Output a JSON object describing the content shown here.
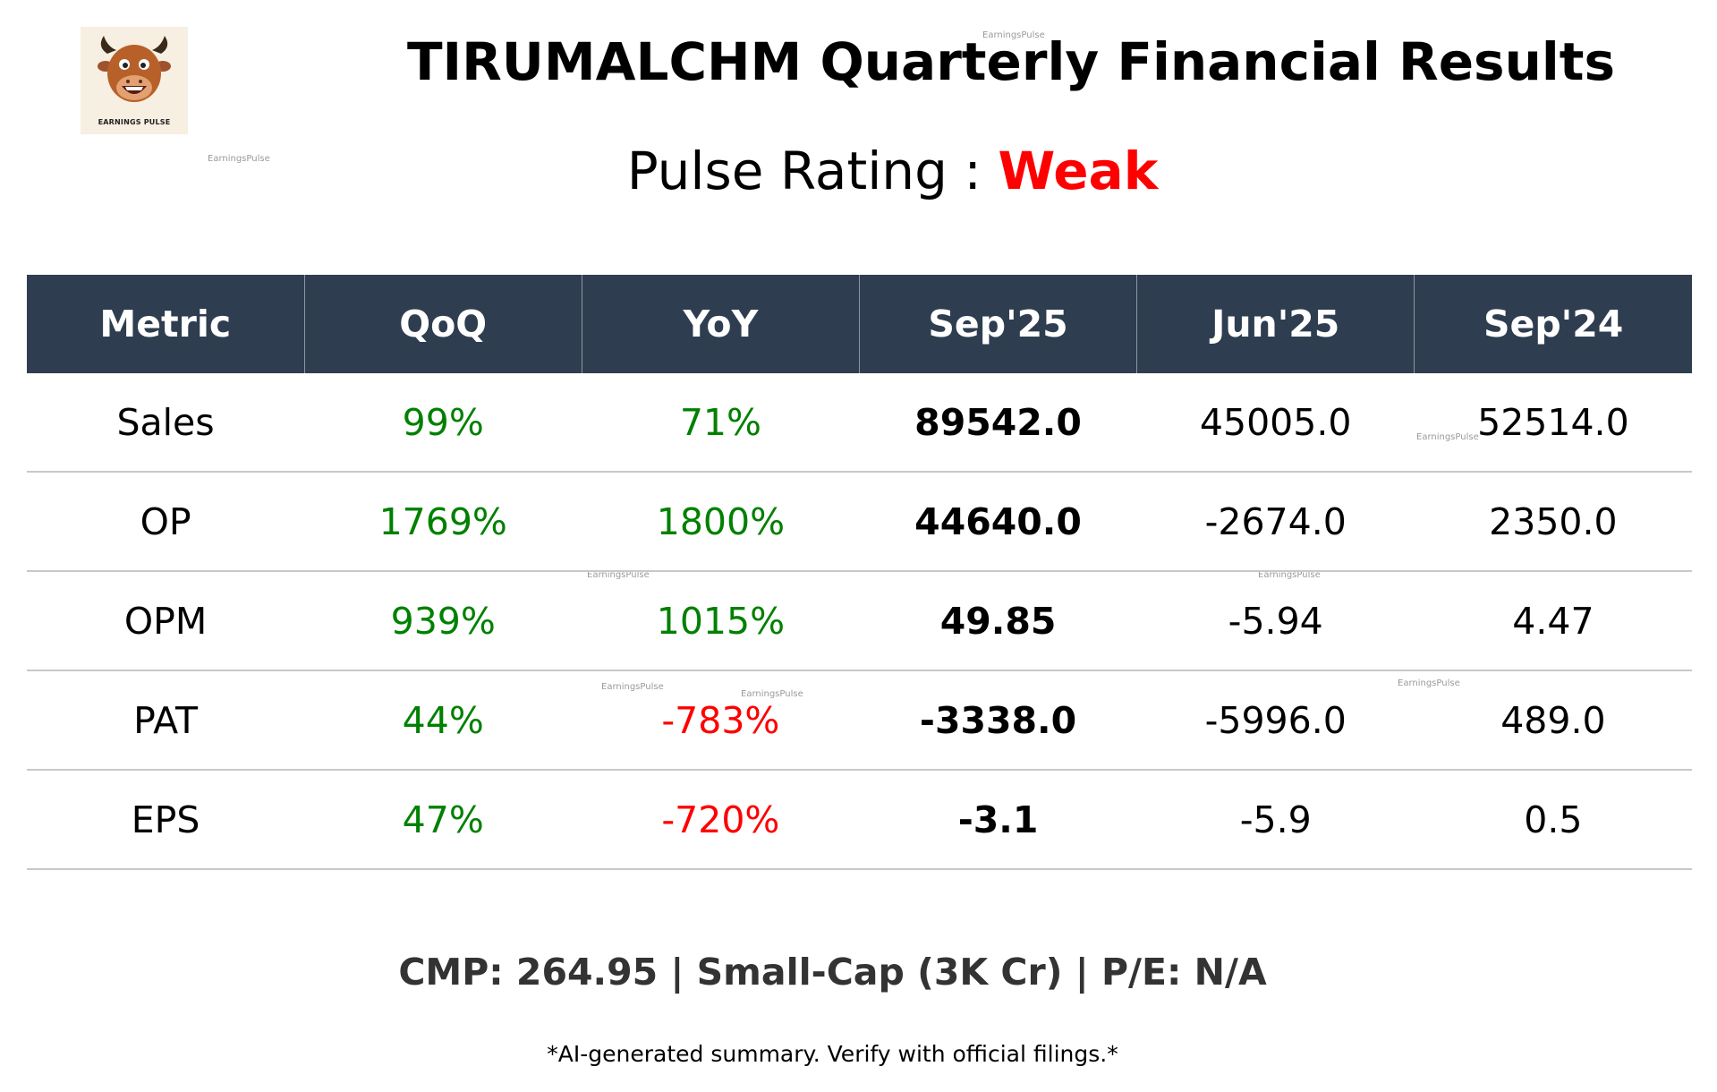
{
  "logo": {
    "text": "EARNINGS PULSE",
    "icon": "bull-mascot-icon"
  },
  "header": {
    "title": "TIRUMALCHM Quarterly Financial Results",
    "rating_label": "Pulse Rating : ",
    "rating_value": "Weak",
    "rating_color": "#ff0000"
  },
  "watermark": "EarningsPulse",
  "table": {
    "columns": [
      "Metric",
      "QoQ",
      "YoY",
      "Sep'25",
      "Jun'25",
      "Sep'24"
    ],
    "header_bg": "#2e3e50",
    "positive_color": "#008000",
    "negative_color": "#ff0000",
    "rows": [
      {
        "metric": "Sales",
        "qoq": "99%",
        "yoy": "71%",
        "sep25": "89542.0",
        "jun25": "45005.0",
        "sep24": "52514.0"
      },
      {
        "metric": "OP",
        "qoq": "1769%",
        "yoy": "1800%",
        "sep25": "44640.0",
        "jun25": "-2674.0",
        "sep24": "2350.0"
      },
      {
        "metric": "OPM",
        "qoq": "939%",
        "yoy": "1015%",
        "sep25": "49.85",
        "jun25": "-5.94",
        "sep24": "4.47"
      },
      {
        "metric": "PAT",
        "qoq": "44%",
        "yoy": "-783%",
        "sep25": "-3338.0",
        "jun25": "-5996.0",
        "sep24": "489.0"
      },
      {
        "metric": "EPS",
        "qoq": "47%",
        "yoy": "-720%",
        "sep25": "-3.1",
        "jun25": "-5.9",
        "sep24": "0.5"
      }
    ]
  },
  "footer": {
    "summary": "CMP: 264.95 | Small-Cap (3K Cr) | P/E: N/A",
    "disclaimer": "*AI-generated summary. Verify with official filings.*"
  }
}
